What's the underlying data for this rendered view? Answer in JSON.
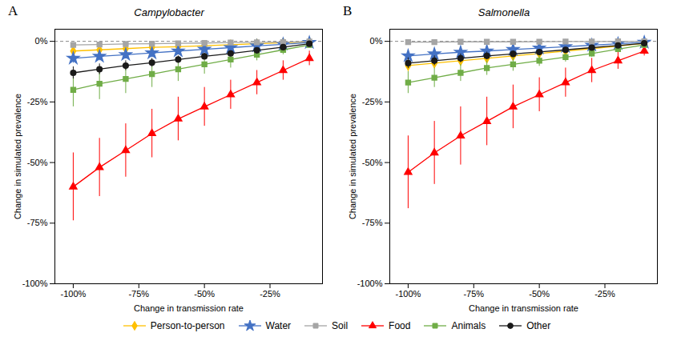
{
  "chart_data": [
    {
      "type": "line",
      "title": "Campylobacter",
      "annotations": [
        "A"
      ],
      "xlabel": "Change in transmission rate",
      "ylabel": "Change in simulated prevalence",
      "x": [
        -100,
        -90,
        -80,
        -70,
        -60,
        -50,
        -40,
        -30,
        -20,
        -10
      ],
      "xlim": [
        -107,
        -5
      ],
      "xticks": [
        {
          "value": -100,
          "label": "-100%"
        },
        {
          "value": -75,
          "label": "-75%"
        },
        {
          "value": -50,
          "label": "-50%"
        },
        {
          "value": -25,
          "label": "-25%"
        }
      ],
      "ylim": [
        -100,
        5
      ],
      "yticks": [
        {
          "value": 0,
          "label": "0%"
        },
        {
          "value": -25,
          "label": "-25%"
        },
        {
          "value": -50,
          "label": "-50%"
        },
        {
          "value": -75,
          "label": "-75%"
        },
        {
          "value": -100,
          "label": "-100%"
        }
      ],
      "grid": false,
      "legend": "bottom",
      "hlines": [
        0
      ],
      "series": [
        {
          "name": "Person-to-person",
          "color": "#FFC000",
          "marker": "diamond",
          "line_style": "solid",
          "values": [
            -4,
            -3.5,
            -3.0,
            -2.5,
            -2.2,
            -1.8,
            -1.4,
            -1.0,
            -0.6,
            -0.2
          ],
          "err": [
            1.2,
            1.1,
            1.0,
            0.9,
            0.8,
            0.7,
            0.6,
            0.5,
            0.3,
            0.2
          ]
        },
        {
          "name": "Water",
          "color": "#4472C4",
          "marker": "star",
          "line_style": "solid",
          "values": [
            -7,
            -6.2,
            -5.5,
            -4.8,
            -4.0,
            -3.3,
            -2.6,
            -1.9,
            -1.2,
            -0.5
          ],
          "err": [
            2.0,
            1.8,
            1.6,
            1.4,
            1.2,
            1.0,
            0.9,
            0.7,
            0.5,
            0.3
          ]
        },
        {
          "name": "Soil",
          "color": "#A5A5A5",
          "marker": "square",
          "line_style": "solid",
          "values": [
            -1.5,
            -1.3,
            -1.1,
            -1.0,
            -0.8,
            -0.7,
            -0.5,
            -0.4,
            -0.3,
            -0.1
          ],
          "err": [
            0.8,
            0.7,
            0.6,
            0.5,
            0.4,
            0.4,
            0.3,
            0.2,
            0.2,
            0.1
          ]
        },
        {
          "name": "Food",
          "color": "#FF0000",
          "marker": "triangle",
          "line_style": "solid",
          "values": [
            -60,
            -52,
            -45,
            -38,
            -32,
            -27,
            -22,
            -17,
            -12,
            -7
          ],
          "err": [
            14,
            12,
            11,
            10,
            9,
            8,
            6,
            5,
            4,
            3
          ]
        },
        {
          "name": "Animals",
          "color": "#70AD47",
          "marker": "square",
          "line_style": "solid",
          "values": [
            -20,
            -17.5,
            -15.5,
            -13.5,
            -11.5,
            -9.5,
            -7.5,
            -5.5,
            -3.5,
            -1.5
          ],
          "err": [
            7,
            6.5,
            6,
            5.5,
            5,
            4,
            3.5,
            2.5,
            2,
            1
          ]
        },
        {
          "name": "Other",
          "color": "#1A1A1A",
          "marker": "circle",
          "line_style": "solid",
          "values": [
            -13,
            -11.5,
            -10,
            -8.8,
            -7.5,
            -6.2,
            -5,
            -3.7,
            -2.4,
            -1.0
          ],
          "err": [
            2.5,
            2.2,
            2.0,
            1.8,
            1.5,
            1.3,
            1.1,
            0.9,
            0.6,
            0.4
          ]
        }
      ]
    },
    {
      "type": "line",
      "title": "Salmonella",
      "annotations": [
        "B"
      ],
      "xlabel": "Change in transmission rate",
      "ylabel": "Change in simulated prevalence",
      "x": [
        -100,
        -90,
        -80,
        -70,
        -60,
        -50,
        -40,
        -30,
        -20,
        -10
      ],
      "xlim": [
        -107,
        -5
      ],
      "xticks": [
        {
          "value": -100,
          "label": "-100%"
        },
        {
          "value": -75,
          "label": "-75%"
        },
        {
          "value": -50,
          "label": "-50%"
        },
        {
          "value": -25,
          "label": "-25%"
        }
      ],
      "ylim": [
        -100,
        5
      ],
      "yticks": [
        {
          "value": 0,
          "label": "0%"
        },
        {
          "value": -25,
          "label": "-25%"
        },
        {
          "value": -50,
          "label": "-50%"
        },
        {
          "value": -75,
          "label": "-75%"
        },
        {
          "value": -100,
          "label": "-100%"
        }
      ],
      "grid": false,
      "legend": "bottom",
      "hlines": [
        0
      ],
      "series": [
        {
          "name": "Person-to-person",
          "color": "#FFC000",
          "marker": "diamond",
          "line_style": "solid",
          "values": [
            -10,
            -9,
            -8,
            -7,
            -6,
            -5,
            -4,
            -3,
            -2,
            -0.8
          ],
          "err": [
            2.5,
            2.2,
            2.0,
            1.8,
            1.5,
            1.3,
            1.0,
            0.8,
            0.5,
            0.3
          ]
        },
        {
          "name": "Water",
          "color": "#4472C4",
          "marker": "star",
          "line_style": "solid",
          "values": [
            -6,
            -5.2,
            -4.5,
            -4.0,
            -3.4,
            -2.8,
            -2.2,
            -1.6,
            -1.0,
            -0.4
          ],
          "err": [
            2.5,
            2.2,
            1.8,
            1.6,
            1.4,
            1.1,
            0.9,
            0.7,
            0.4,
            0.2
          ]
        },
        {
          "name": "Soil",
          "color": "#A5A5A5",
          "marker": "square",
          "line_style": "solid",
          "values": [
            -0.3,
            -0.3,
            -0.2,
            -0.2,
            -0.2,
            -0.15,
            -0.1,
            -0.1,
            -0.05,
            -0.02
          ],
          "err": [
            0.2,
            0.2,
            0.15,
            0.15,
            0.1,
            0.1,
            0.08,
            0.06,
            0.04,
            0.02
          ]
        },
        {
          "name": "Food",
          "color": "#FF0000",
          "marker": "triangle",
          "line_style": "solid",
          "values": [
            -54,
            -46,
            -39,
            -33,
            -27,
            -22,
            -17,
            -12,
            -8,
            -4
          ],
          "err": [
            15,
            13,
            12,
            10,
            9,
            7,
            6,
            5,
            3.5,
            2
          ]
        },
        {
          "name": "Animals",
          "color": "#70AD47",
          "marker": "square",
          "line_style": "solid",
          "values": [
            -17,
            -15,
            -13,
            -11,
            -9.5,
            -8,
            -6.5,
            -5,
            -3.2,
            -1.5
          ],
          "err": [
            4.5,
            4,
            3.5,
            3,
            2.8,
            2.3,
            2,
            1.5,
            1.0,
            0.5
          ]
        },
        {
          "name": "Other",
          "color": "#1A1A1A",
          "marker": "circle",
          "line_style": "solid",
          "values": [
            -9,
            -8,
            -7,
            -6,
            -5.2,
            -4.4,
            -3.5,
            -2.6,
            -1.7,
            -0.8
          ],
          "err": [
            2.2,
            2.0,
            1.8,
            1.6,
            1.3,
            1.1,
            0.9,
            0.7,
            0.5,
            0.3
          ]
        }
      ]
    }
  ]
}
